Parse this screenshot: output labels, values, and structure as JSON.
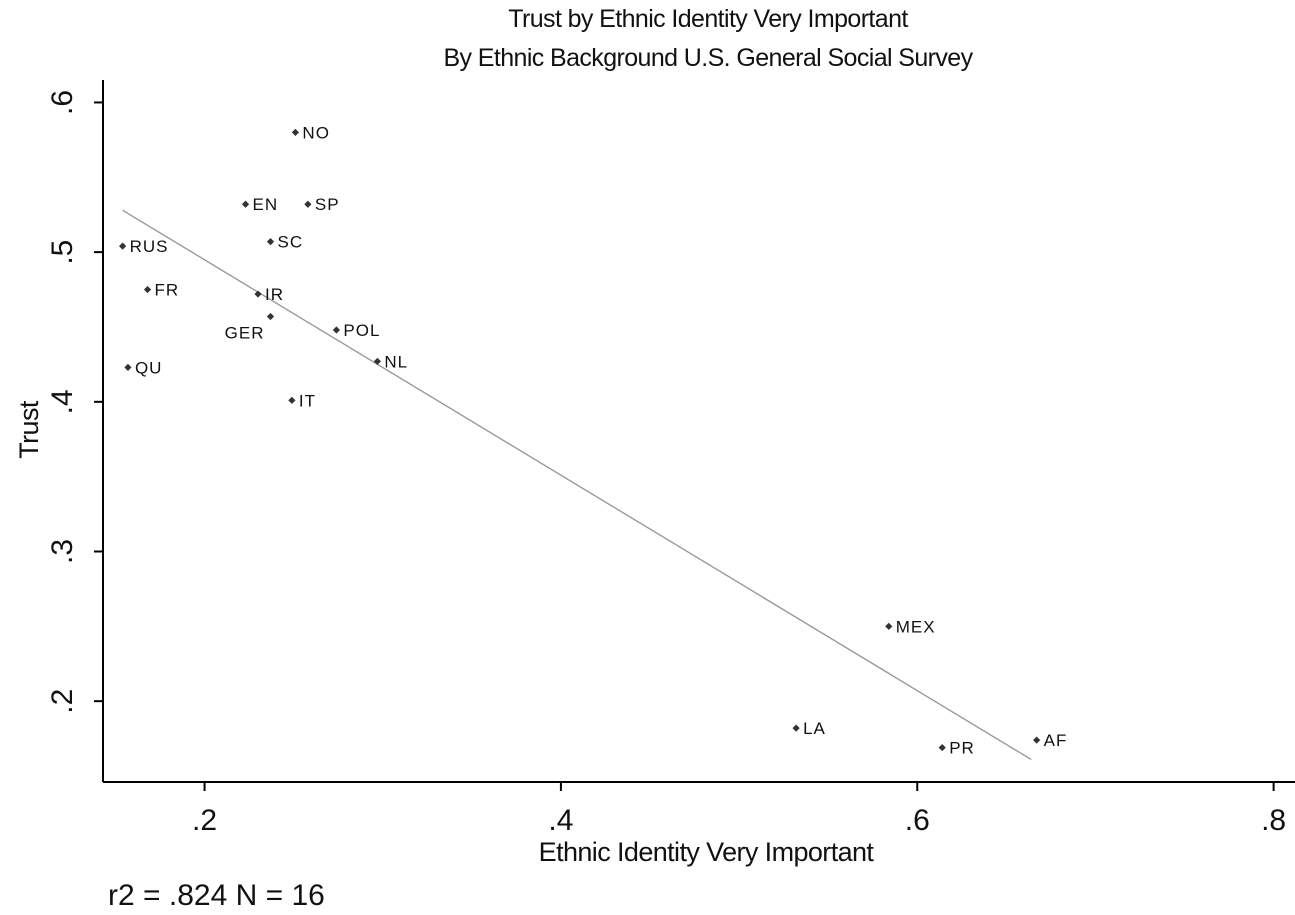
{
  "chart_data": {
    "type": "scatter",
    "title": "Trust by Ethnic Identity Very Important",
    "subtitle": "By Ethnic Background U.S. General Social Survey",
    "xlabel": "Ethnic Identity Very Important",
    "ylabel": "Trust",
    "xlim": [
      0.143,
      0.812
    ],
    "ylim": [
      0.146,
      0.615
    ],
    "xticks": [
      {
        "value": 0.2,
        "label": ".2"
      },
      {
        "value": 0.4,
        "label": ".4"
      },
      {
        "value": 0.6,
        "label": ".6"
      },
      {
        "value": 0.8,
        "label": ".8"
      }
    ],
    "yticks": [
      {
        "value": 0.2,
        "label": ".2"
      },
      {
        "value": 0.3,
        "label": ".3"
      },
      {
        "value": 0.4,
        "label": ".4"
      },
      {
        "value": 0.5,
        "label": ".5"
      },
      {
        "value": 0.6,
        "label": ".6"
      }
    ],
    "grid": false,
    "points": [
      {
        "label": "NO",
        "x": 0.251,
        "y": 0.58,
        "label_side": "right"
      },
      {
        "label": "EN",
        "x": 0.223,
        "y": 0.532,
        "label_side": "right"
      },
      {
        "label": "SP",
        "x": 0.258,
        "y": 0.532,
        "label_side": "right"
      },
      {
        "label": "SC",
        "x": 0.237,
        "y": 0.507,
        "label_side": "right"
      },
      {
        "label": "RUS",
        "x": 0.154,
        "y": 0.504,
        "label_side": "right"
      },
      {
        "label": "FR",
        "x": 0.168,
        "y": 0.475,
        "label_side": "right"
      },
      {
        "label": "IR",
        "x": 0.23,
        "y": 0.472,
        "label_side": "right"
      },
      {
        "label": "GER",
        "x": 0.237,
        "y": 0.457,
        "label_side": "left"
      },
      {
        "label": "POL",
        "x": 0.274,
        "y": 0.448,
        "label_side": "right"
      },
      {
        "label": "NL",
        "x": 0.297,
        "y": 0.427,
        "label_side": "right"
      },
      {
        "label": "QU",
        "x": 0.157,
        "y": 0.423,
        "label_side": "right"
      },
      {
        "label": "IT",
        "x": 0.249,
        "y": 0.401,
        "label_side": "right"
      },
      {
        "label": "MEX",
        "x": 0.584,
        "y": 0.25,
        "label_side": "right"
      },
      {
        "label": "LA",
        "x": 0.532,
        "y": 0.182,
        "label_side": "right"
      },
      {
        "label": "PR",
        "x": 0.614,
        "y": 0.169,
        "label_side": "right"
      },
      {
        "label": "AF",
        "x": 0.667,
        "y": 0.174,
        "label_side": "right"
      }
    ],
    "fit_line": {
      "x": [
        0.154,
        0.664
      ],
      "y": [
        0.528,
        0.161
      ]
    },
    "annotation": "r2 = .824   N = 16"
  }
}
